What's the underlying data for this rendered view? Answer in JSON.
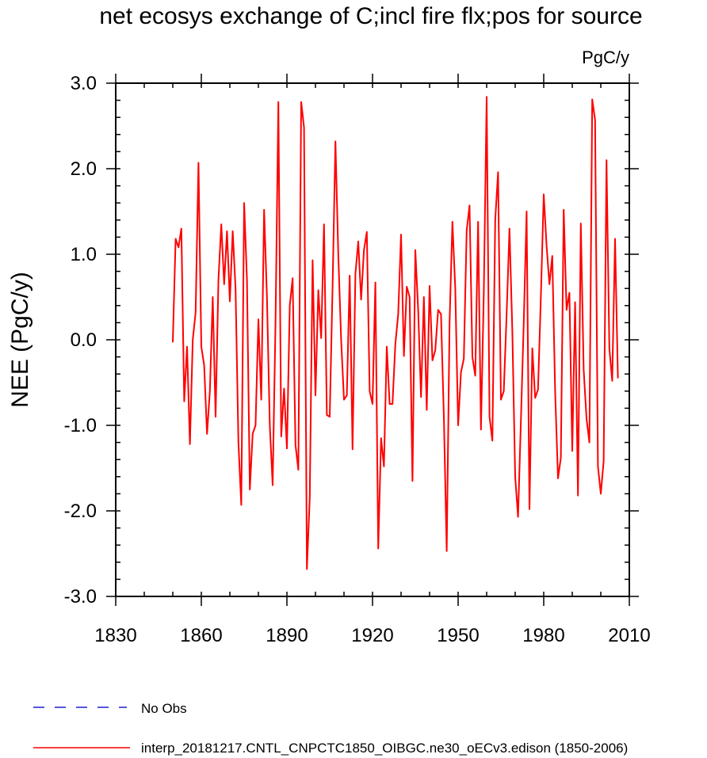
{
  "chart_data": {
    "type": "line",
    "title": "net ecosys exchange of C;incl fire flx;pos for source",
    "units_label": "PgC/y",
    "ylabel": "NEE  (PgC/y)",
    "xlabel": "",
    "xlim": [
      1830,
      2010
    ],
    "ylim": [
      -3.0,
      3.0
    ],
    "x_ticks": [
      1830,
      1860,
      1890,
      1920,
      1950,
      1980,
      2010
    ],
    "x_tick_labels": [
      "1830",
      "1860",
      "1890",
      "1920",
      "1950",
      "1980",
      "2010"
    ],
    "x_minor_step": 10,
    "y_ticks": [
      -3.0,
      -2.0,
      -1.0,
      0.0,
      1.0,
      2.0,
      3.0
    ],
    "y_tick_labels": [
      "-3.0",
      "-2.0",
      "-1.0",
      "0.0",
      "1.0",
      "2.0",
      "3.0"
    ],
    "y_minor_step": 0.2,
    "x_start": 1850,
    "series": [
      {
        "name": "interp_20181217.CNTL_CNPCTC1850_OIBGC.ne30_oECv3.edison (1850-2006)",
        "color": "#ff0000",
        "values": [
          -0.03,
          1.18,
          1.08,
          1.3,
          -0.72,
          -0.08,
          -1.22,
          0.0,
          0.32,
          2.07,
          -0.08,
          -0.3,
          -1.1,
          -0.6,
          0.5,
          -0.9,
          0.7,
          1.35,
          0.65,
          1.27,
          0.45,
          1.27,
          0.6,
          -1.2,
          -1.93,
          1.6,
          0.7,
          -1.75,
          -1.1,
          -1.0,
          0.24,
          -0.7,
          1.52,
          0.5,
          -1.0,
          -1.7,
          0.2,
          2.78,
          -1.13,
          -0.57,
          -1.27,
          0.4,
          0.72,
          -1.23,
          -1.52,
          2.78,
          2.48,
          -2.68,
          -1.85,
          0.93,
          -0.65,
          0.58,
          0.02,
          1.35,
          -0.88,
          -0.9,
          0.62,
          2.32,
          1.0,
          0.0,
          -0.7,
          -0.65,
          0.75,
          -1.28,
          0.77,
          1.15,
          0.47,
          1.05,
          1.26,
          -0.6,
          -0.75,
          0.67,
          -2.44,
          -1.15,
          -1.48,
          -0.08,
          -0.75,
          -0.75,
          -0.05,
          0.3,
          1.23,
          -0.19,
          0.62,
          0.5,
          -1.65,
          1.05,
          0.35,
          -0.67,
          0.5,
          -0.82,
          0.63,
          -0.24,
          -0.12,
          0.35,
          0.3,
          -0.9,
          -2.47,
          0.2,
          1.38,
          0.6,
          -1.0,
          -0.38,
          -0.22,
          1.28,
          1.57,
          -0.2,
          -0.42,
          1.38,
          -1.05,
          0.55,
          2.84,
          -0.9,
          -1.18,
          1.4,
          1.96,
          -0.7,
          -0.6,
          0.3,
          1.3,
          0.1,
          -1.6,
          -2.07,
          -0.95,
          0.2,
          1.5,
          -1.98,
          -0.1,
          -0.68,
          -0.58,
          0.5,
          1.7,
          1.1,
          0.65,
          0.98,
          -0.6,
          -1.62,
          -1.38,
          1.52,
          0.35,
          0.55,
          -1.3,
          0.44,
          -1.82,
          1.36,
          -0.35,
          -0.92,
          -1.2,
          2.81,
          2.57,
          -1.48,
          -1.8,
          -1.42,
          2.1,
          -0.1,
          -0.48,
          1.18,
          -0.45
        ]
      }
    ],
    "legend": [
      {
        "label": "No Obs",
        "color": "#1f1fd0",
        "style": "dashed"
      },
      {
        "label": "interp_20181217.CNTL_CNPCTC1850_OIBGC.ne30_oECv3.edison (1850-2006)",
        "color": "#ff0000",
        "style": "solid"
      }
    ]
  }
}
